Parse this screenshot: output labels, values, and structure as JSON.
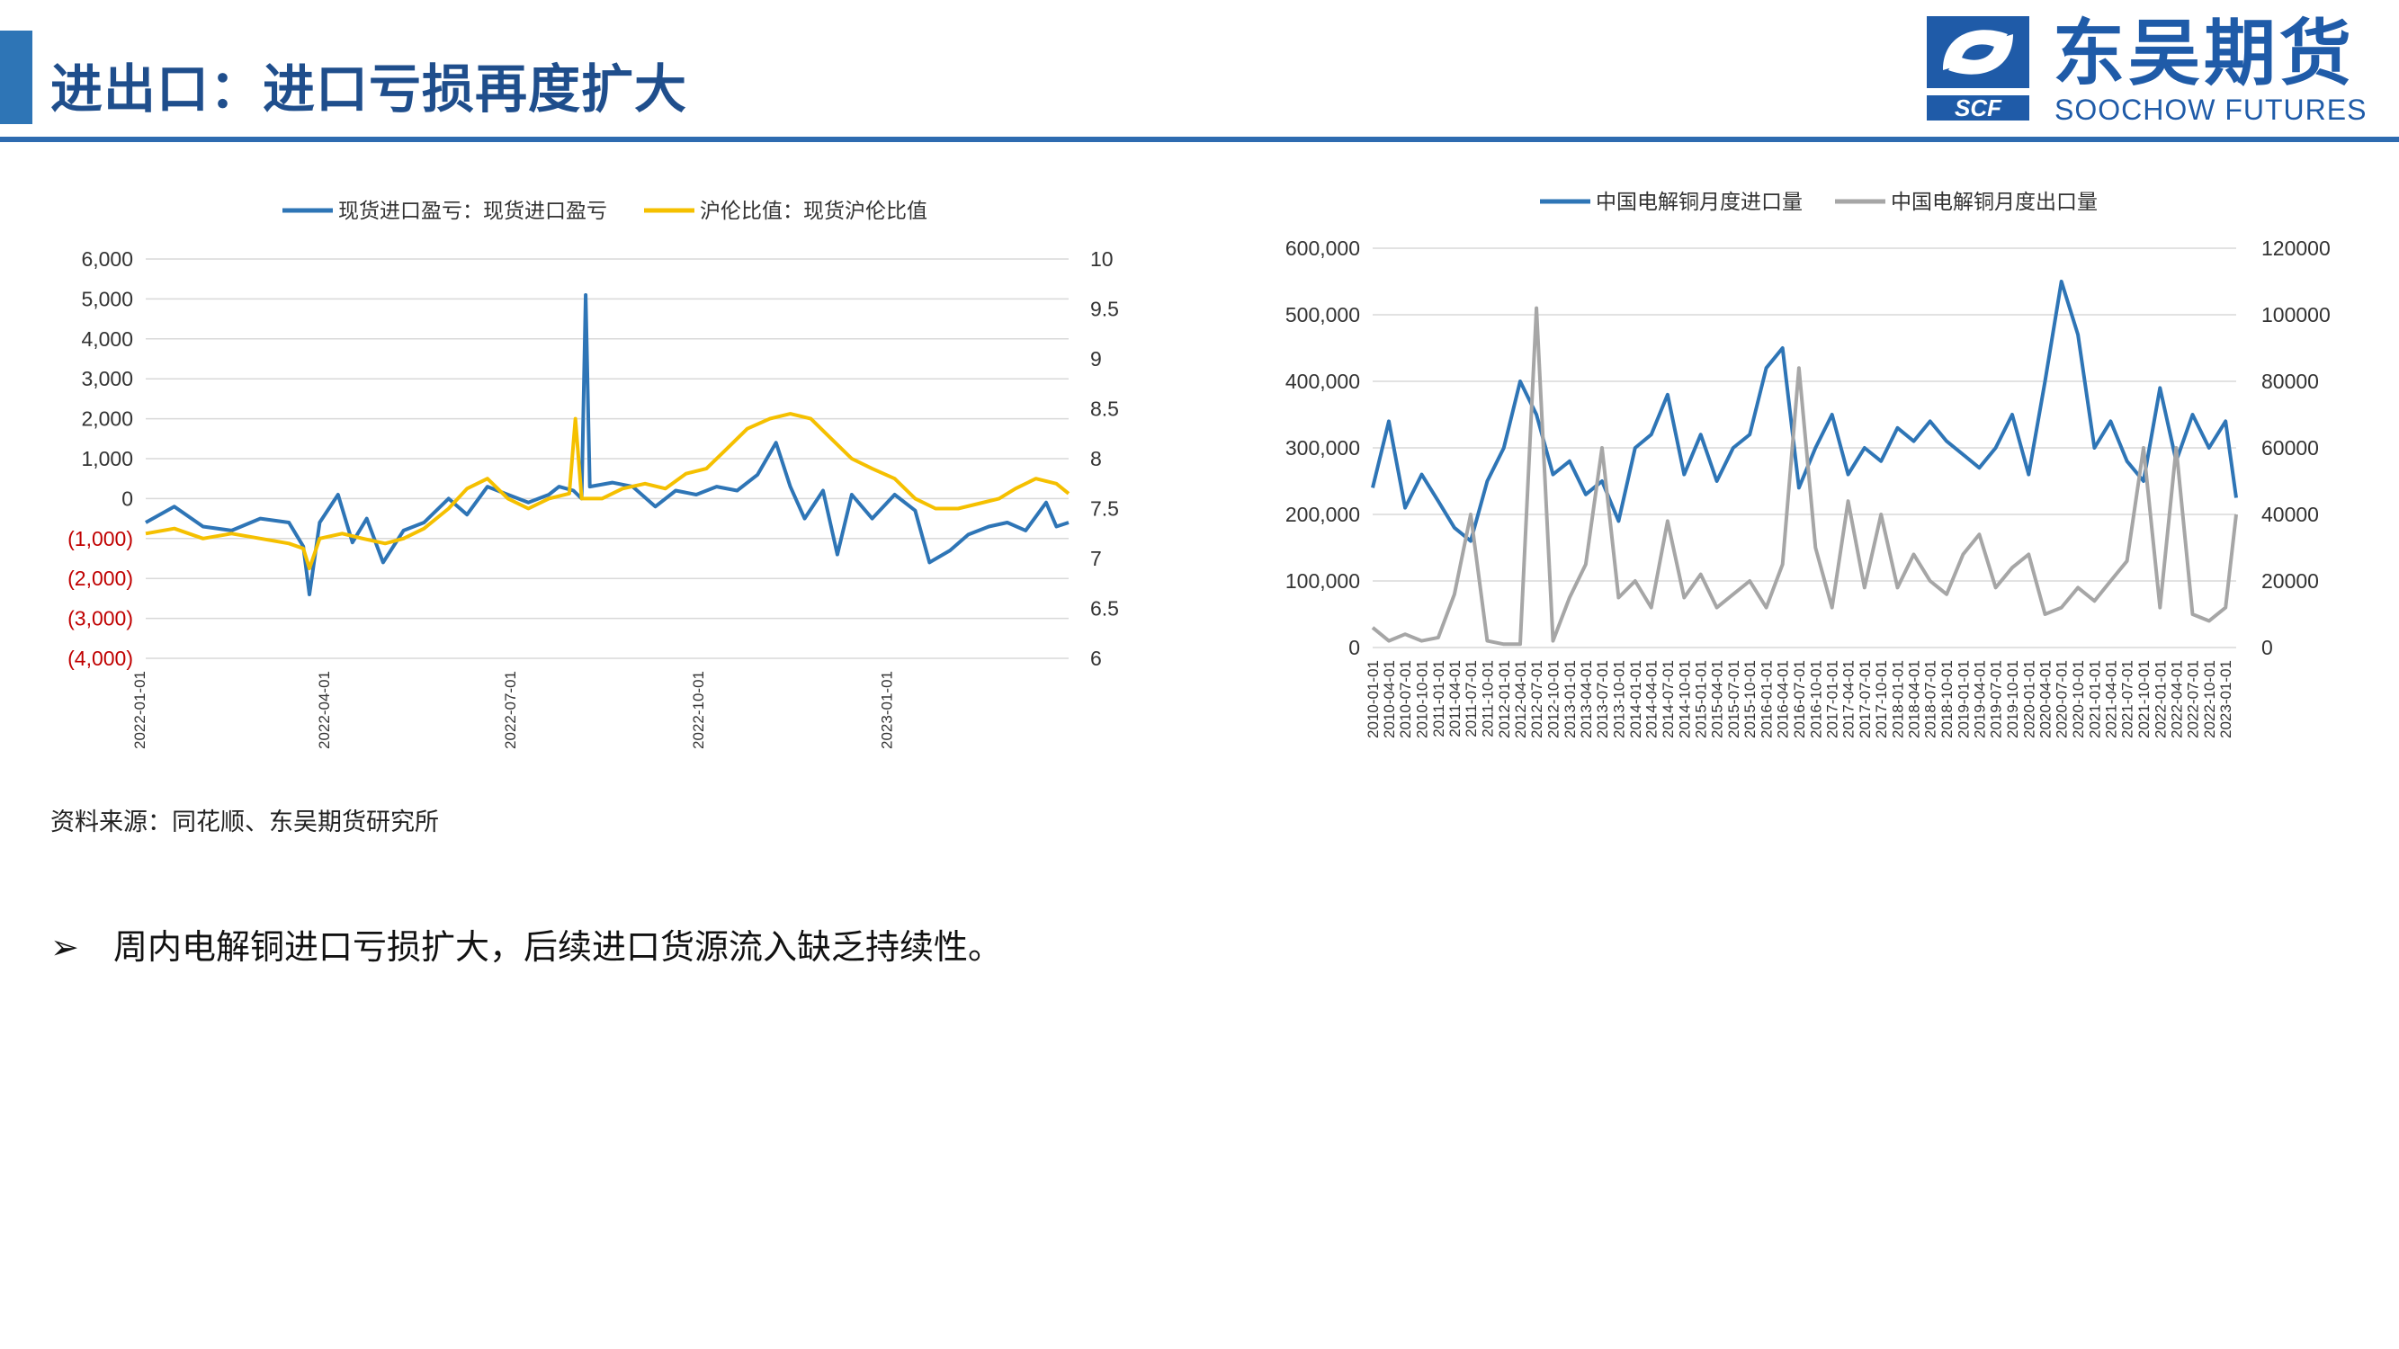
{
  "page": {
    "title": "进出口：进口亏损再度扩大",
    "brand": {
      "name_cn": "东吴期货",
      "name_en": "SOOCHOW FUTURES",
      "logo_text": "SCF"
    },
    "source_note": "资料来源：同花顺、东吴期货研究所",
    "bullet": {
      "glyph": "➢",
      "text": "周内电解铜进口亏损扩大，后续进口货源流入缺乏持续性。"
    },
    "colors": {
      "accent": "#1F5BA8",
      "blue_series": "#2E75B6",
      "gold_series": "#F5C000",
      "gray_series": "#A6A6A6",
      "negative_tick": "#C00000"
    }
  },
  "chart_data": [
    {
      "type": "line",
      "title": "",
      "x_ticks": [
        "2022-01-01",
        "2022-04-01",
        "2022-07-01",
        "2022-10-01",
        "2023-01-01"
      ],
      "x_range": [
        "2022-01-04",
        "2023-03-31"
      ],
      "y_left": {
        "range": [
          -4000,
          6000
        ],
        "step": 1000,
        "tick_labels": [
          "(4,000)",
          "(3,000)",
          "(2,000)",
          "(1,000)",
          "0",
          "1,000",
          "2,000",
          "3,000",
          "4,000",
          "5,000",
          "6,000"
        ]
      },
      "y_right": {
        "range": [
          6,
          10
        ],
        "step": 0.5,
        "tick_labels": [
          "6",
          "6.5",
          "7",
          "7.5",
          "8",
          "8.5",
          "9",
          "9.5",
          "10"
        ]
      },
      "grid": true,
      "legend_position": "top",
      "series": [
        {
          "name": "现货进口盈亏：现货进口盈亏",
          "axis": "left",
          "color": "#2E75B6",
          "points": [
            [
              "2022-01-04",
              -600
            ],
            [
              "2022-01-18",
              -200
            ],
            [
              "2022-02-01",
              -700
            ],
            [
              "2022-02-15",
              -800
            ],
            [
              "2022-03-01",
              -500
            ],
            [
              "2022-03-15",
              -600
            ],
            [
              "2022-03-22",
              -1200
            ],
            [
              "2022-03-25",
              -2400
            ],
            [
              "2022-03-30",
              -600
            ],
            [
              "2022-04-08",
              100
            ],
            [
              "2022-04-15",
              -1100
            ],
            [
              "2022-04-22",
              -500
            ],
            [
              "2022-04-30",
              -1600
            ],
            [
              "2022-05-10",
              -800
            ],
            [
              "2022-05-20",
              -600
            ],
            [
              "2022-06-01",
              0
            ],
            [
              "2022-06-10",
              -400
            ],
            [
              "2022-06-20",
              300
            ],
            [
              "2022-06-30",
              100
            ],
            [
              "2022-07-10",
              -100
            ],
            [
              "2022-07-20",
              100
            ],
            [
              "2022-07-25",
              300
            ],
            [
              "2022-08-01",
              200
            ],
            [
              "2022-08-05",
              0
            ],
            [
              "2022-08-07",
              5100
            ],
            [
              "2022-08-09",
              300
            ],
            [
              "2022-08-20",
              400
            ],
            [
              "2022-08-30",
              300
            ],
            [
              "2022-09-10",
              -200
            ],
            [
              "2022-09-20",
              200
            ],
            [
              "2022-09-30",
              100
            ],
            [
              "2022-10-10",
              300
            ],
            [
              "2022-10-20",
              200
            ],
            [
              "2022-10-30",
              600
            ],
            [
              "2022-11-08",
              1400
            ],
            [
              "2022-11-15",
              300
            ],
            [
              "2022-11-22",
              -500
            ],
            [
              "2022-12-01",
              200
            ],
            [
              "2022-12-08",
              -1400
            ],
            [
              "2022-12-15",
              100
            ],
            [
              "2022-12-25",
              -500
            ],
            [
              "2023-01-05",
              100
            ],
            [
              "2023-01-15",
              -300
            ],
            [
              "2023-01-22",
              -1600
            ],
            [
              "2023-02-01",
              -1300
            ],
            [
              "2023-02-10",
              -900
            ],
            [
              "2023-02-20",
              -700
            ],
            [
              "2023-03-01",
              -600
            ],
            [
              "2023-03-10",
              -800
            ],
            [
              "2023-03-20",
              -100
            ],
            [
              "2023-03-25",
              -700
            ],
            [
              "2023-03-31",
              -600
            ]
          ]
        },
        {
          "name": "沪伦比值：现货沪伦比值",
          "axis": "right",
          "color": "#F5C000",
          "points": [
            [
              "2022-01-04",
              7.25
            ],
            [
              "2022-01-18",
              7.3
            ],
            [
              "2022-02-01",
              7.2
            ],
            [
              "2022-02-15",
              7.25
            ],
            [
              "2022-03-01",
              7.2
            ],
            [
              "2022-03-15",
              7.15
            ],
            [
              "2022-03-22",
              7.1
            ],
            [
              "2022-03-25",
              6.9
            ],
            [
              "2022-03-30",
              7.2
            ],
            [
              "2022-04-10",
              7.25
            ],
            [
              "2022-04-20",
              7.2
            ],
            [
              "2022-05-01",
              7.15
            ],
            [
              "2022-05-10",
              7.2
            ],
            [
              "2022-05-20",
              7.3
            ],
            [
              "2022-06-01",
              7.5
            ],
            [
              "2022-06-10",
              7.7
            ],
            [
              "2022-06-20",
              7.8
            ],
            [
              "2022-06-30",
              7.6
            ],
            [
              "2022-07-10",
              7.5
            ],
            [
              "2022-07-20",
              7.6
            ],
            [
              "2022-07-30",
              7.65
            ],
            [
              "2022-08-02",
              8.4
            ],
            [
              "2022-08-05",
              7.6
            ],
            [
              "2022-08-15",
              7.6
            ],
            [
              "2022-08-25",
              7.7
            ],
            [
              "2022-09-05",
              7.75
            ],
            [
              "2022-09-15",
              7.7
            ],
            [
              "2022-09-25",
              7.85
            ],
            [
              "2022-10-05",
              7.9
            ],
            [
              "2022-10-15",
              8.1
            ],
            [
              "2022-10-25",
              8.3
            ],
            [
              "2022-11-05",
              8.4
            ],
            [
              "2022-11-15",
              8.45
            ],
            [
              "2022-11-25",
              8.4
            ],
            [
              "2022-12-05",
              8.2
            ],
            [
              "2022-12-15",
              8.0
            ],
            [
              "2022-12-25",
              7.9
            ],
            [
              "2023-01-05",
              7.8
            ],
            [
              "2023-01-15",
              7.6
            ],
            [
              "2023-01-25",
              7.5
            ],
            [
              "2023-02-05",
              7.5
            ],
            [
              "2023-02-15",
              7.55
            ],
            [
              "2023-02-25",
              7.6
            ],
            [
              "2023-03-05",
              7.7
            ],
            [
              "2023-03-15",
              7.8
            ],
            [
              "2023-03-25",
              7.75
            ],
            [
              "2023-03-31",
              7.65
            ]
          ]
        }
      ]
    },
    {
      "type": "line",
      "title": "",
      "x_ticks": [
        "2010-01-01",
        "2010-04-01",
        "2010-07-01",
        "2010-10-01",
        "2011-01-01",
        "2011-04-01",
        "2011-07-01",
        "2011-10-01",
        "2012-01-01",
        "2012-04-01",
        "2012-07-01",
        "2012-10-01",
        "2013-01-01",
        "2013-04-01",
        "2013-07-01",
        "2013-10-01",
        "2014-01-01",
        "2014-04-01",
        "2014-07-01",
        "2014-10-01",
        "2015-01-01",
        "2015-04-01",
        "2015-07-01",
        "2015-10-01",
        "2016-01-01",
        "2016-04-01",
        "2016-07-01",
        "2016-10-01",
        "2017-01-01",
        "2017-04-01",
        "2017-07-01",
        "2017-10-01",
        "2018-01-01",
        "2018-04-01",
        "2018-07-01",
        "2018-10-01",
        "2019-01-01",
        "2019-04-01",
        "2019-07-01",
        "2019-10-01",
        "2020-01-01",
        "2020-04-01",
        "2020-07-01",
        "2020-10-01",
        "2021-01-01",
        "2021-04-01",
        "2021-07-01",
        "2021-10-01",
        "2022-01-01",
        "2022-04-01",
        "2022-07-01",
        "2022-10-01",
        "2023-01-01"
      ],
      "x_range": [
        "2010-01-01",
        "2023-03-01"
      ],
      "y_left": {
        "range": [
          0,
          600000
        ],
        "step": 100000,
        "tick_labels": [
          "0",
          "100,000",
          "200,000",
          "300,000",
          "400,000",
          "500,000",
          "600,000"
        ]
      },
      "y_right": {
        "range": [
          0,
          120000
        ],
        "step": 20000,
        "tick_labels": [
          "0",
          "20000",
          "40000",
          "60000",
          "80000",
          "100000",
          "120000"
        ]
      },
      "grid": true,
      "legend_position": "top",
      "series": [
        {
          "name": "中国电解铜月度进口量",
          "axis": "left",
          "color": "#2E75B6",
          "points": [
            [
              "2010-01-01",
              240000
            ],
            [
              "2010-04-01",
              340000
            ],
            [
              "2010-07-01",
              210000
            ],
            [
              "2010-10-01",
              260000
            ],
            [
              "2011-01-01",
              220000
            ],
            [
              "2011-04-01",
              180000
            ],
            [
              "2011-07-01",
              160000
            ],
            [
              "2011-10-01",
              250000
            ],
            [
              "2012-01-01",
              300000
            ],
            [
              "2012-04-01",
              400000
            ],
            [
              "2012-07-01",
              350000
            ],
            [
              "2012-10-01",
              260000
            ],
            [
              "2013-01-01",
              280000
            ],
            [
              "2013-04-01",
              230000
            ],
            [
              "2013-07-01",
              250000
            ],
            [
              "2013-10-01",
              190000
            ],
            [
              "2014-01-01",
              300000
            ],
            [
              "2014-04-01",
              320000
            ],
            [
              "2014-07-01",
              380000
            ],
            [
              "2014-10-01",
              260000
            ],
            [
              "2015-01-01",
              320000
            ],
            [
              "2015-04-01",
              250000
            ],
            [
              "2015-07-01",
              300000
            ],
            [
              "2015-10-01",
              320000
            ],
            [
              "2016-01-01",
              420000
            ],
            [
              "2016-04-01",
              450000
            ],
            [
              "2016-07-01",
              240000
            ],
            [
              "2016-10-01",
              300000
            ],
            [
              "2017-01-01",
              350000
            ],
            [
              "2017-04-01",
              260000
            ],
            [
              "2017-07-01",
              300000
            ],
            [
              "2017-10-01",
              280000
            ],
            [
              "2018-01-01",
              330000
            ],
            [
              "2018-04-01",
              310000
            ],
            [
              "2018-07-01",
              340000
            ],
            [
              "2018-10-01",
              310000
            ],
            [
              "2019-01-01",
              290000
            ],
            [
              "2019-04-01",
              270000
            ],
            [
              "2019-07-01",
              300000
            ],
            [
              "2019-10-01",
              350000
            ],
            [
              "2020-01-01",
              260000
            ],
            [
              "2020-04-01",
              400000
            ],
            [
              "2020-07-01",
              550000
            ],
            [
              "2020-10-01",
              470000
            ],
            [
              "2021-01-01",
              300000
            ],
            [
              "2021-04-01",
              340000
            ],
            [
              "2021-07-01",
              280000
            ],
            [
              "2021-10-01",
              250000
            ],
            [
              "2022-01-01",
              390000
            ],
            [
              "2022-04-01",
              280000
            ],
            [
              "2022-07-01",
              350000
            ],
            [
              "2022-10-01",
              300000
            ],
            [
              "2023-01-01",
              340000
            ],
            [
              "2023-03-01",
              225000
            ]
          ]
        },
        {
          "name": "中国电解铜月度出口量",
          "axis": "right",
          "color": "#A6A6A6",
          "points": [
            [
              "2010-01-01",
              6000
            ],
            [
              "2010-04-01",
              2000
            ],
            [
              "2010-07-01",
              4000
            ],
            [
              "2010-10-01",
              2000
            ],
            [
              "2011-01-01",
              3000
            ],
            [
              "2011-04-01",
              16000
            ],
            [
              "2011-07-01",
              40000
            ],
            [
              "2011-10-01",
              2000
            ],
            [
              "2012-01-01",
              1000
            ],
            [
              "2012-04-01",
              1000
            ],
            [
              "2012-07-01",
              102000
            ],
            [
              "2012-10-01",
              2000
            ],
            [
              "2013-01-01",
              15000
            ],
            [
              "2013-04-01",
              25000
            ],
            [
              "2013-07-01",
              60000
            ],
            [
              "2013-10-01",
              15000
            ],
            [
              "2014-01-01",
              20000
            ],
            [
              "2014-04-01",
              12000
            ],
            [
              "2014-07-01",
              38000
            ],
            [
              "2014-10-01",
              15000
            ],
            [
              "2015-01-01",
              22000
            ],
            [
              "2015-04-01",
              12000
            ],
            [
              "2015-07-01",
              16000
            ],
            [
              "2015-10-01",
              20000
            ],
            [
              "2016-01-01",
              12000
            ],
            [
              "2016-04-01",
              25000
            ],
            [
              "2016-07-01",
              84000
            ],
            [
              "2016-10-01",
              30000
            ],
            [
              "2017-01-01",
              12000
            ],
            [
              "2017-04-01",
              44000
            ],
            [
              "2017-07-01",
              18000
            ],
            [
              "2017-10-01",
              40000
            ],
            [
              "2018-01-01",
              18000
            ],
            [
              "2018-04-01",
              28000
            ],
            [
              "2018-07-01",
              20000
            ],
            [
              "2018-10-01",
              16000
            ],
            [
              "2019-01-01",
              28000
            ],
            [
              "2019-04-01",
              34000
            ],
            [
              "2019-07-01",
              18000
            ],
            [
              "2019-10-01",
              24000
            ],
            [
              "2020-01-01",
              28000
            ],
            [
              "2020-04-01",
              10000
            ],
            [
              "2020-07-01",
              12000
            ],
            [
              "2020-10-01",
              18000
            ],
            [
              "2021-01-01",
              14000
            ],
            [
              "2021-04-01",
              20000
            ],
            [
              "2021-07-01",
              26000
            ],
            [
              "2021-10-01",
              60000
            ],
            [
              "2022-01-01",
              12000
            ],
            [
              "2022-04-01",
              60000
            ],
            [
              "2022-07-01",
              10000
            ],
            [
              "2022-10-01",
              8000
            ],
            [
              "2023-01-01",
              12000
            ],
            [
              "2023-03-01",
              40000
            ]
          ]
        }
      ]
    }
  ]
}
